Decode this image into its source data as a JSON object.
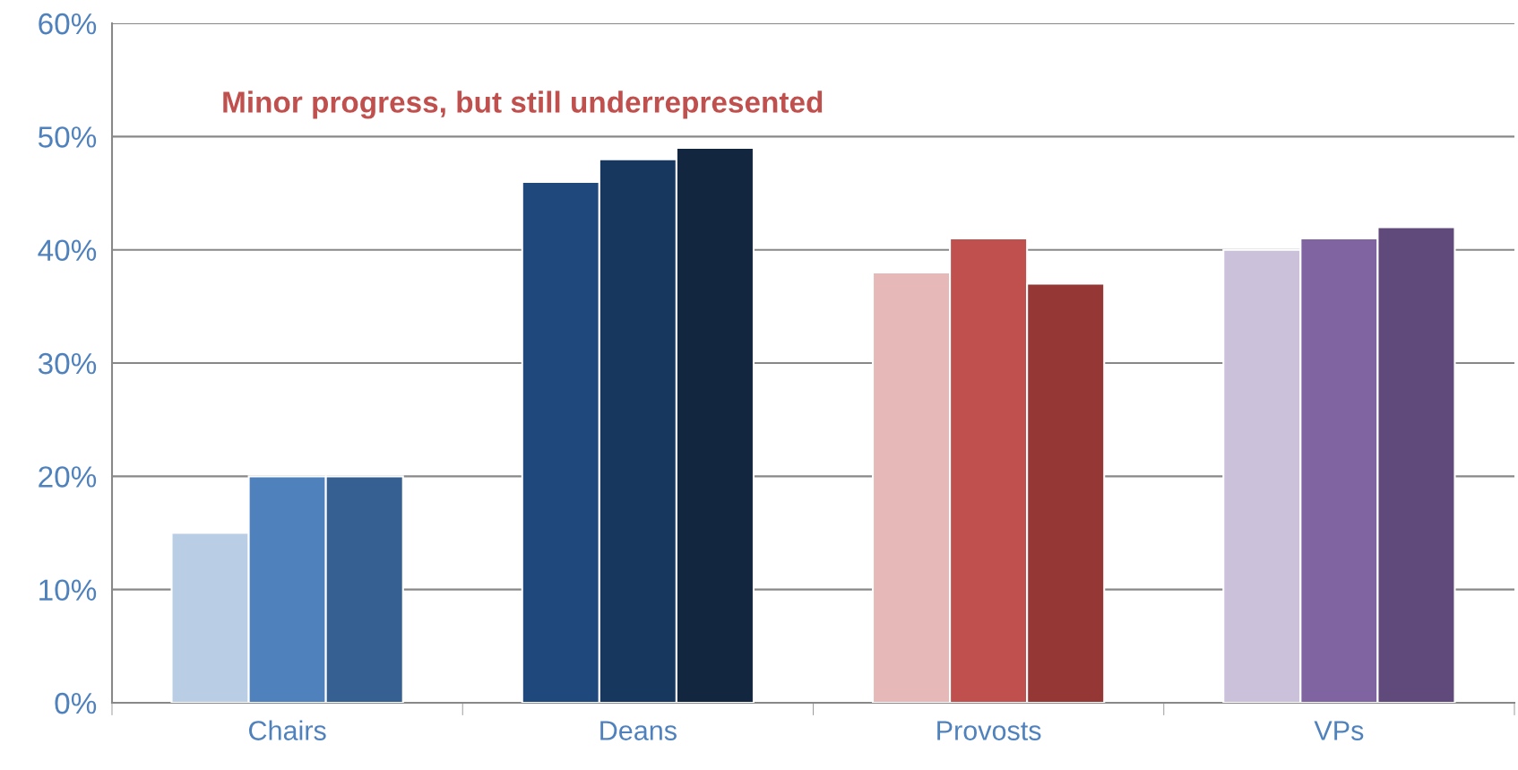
{
  "chart_data": {
    "type": "bar",
    "categories": [
      "Chairs",
      "Deans",
      "Provosts",
      "VPs"
    ],
    "series": [
      {
        "colors": [
          "#b9cde5",
          "#1f497d",
          "#e6b9b8",
          "#ccc1da"
        ],
        "values": [
          15,
          46,
          38,
          40
        ]
      },
      {
        "colors": [
          "#4f81bd",
          "#17375e",
          "#c0504d",
          "#8064a2"
        ],
        "values": [
          20,
          48,
          41,
          41
        ]
      },
      {
        "colors": [
          "#366092",
          "#12263f",
          "#953735",
          "#604a7b"
        ],
        "values": [
          20,
          49,
          37,
          42
        ]
      }
    ],
    "ylim": [
      0,
      60
    ],
    "yticks": [
      {
        "value": 0,
        "label": "0%"
      },
      {
        "value": 10,
        "label": "10%"
      },
      {
        "value": 20,
        "label": "20%"
      },
      {
        "value": 30,
        "label": "30%"
      },
      {
        "value": 40,
        "label": "40%"
      },
      {
        "value": 50,
        "label": "50%"
      },
      {
        "value": 60,
        "label": "60%"
      }
    ],
    "grid": "y",
    "annotations": [
      "Minor progress, but still underrepresented"
    ]
  }
}
